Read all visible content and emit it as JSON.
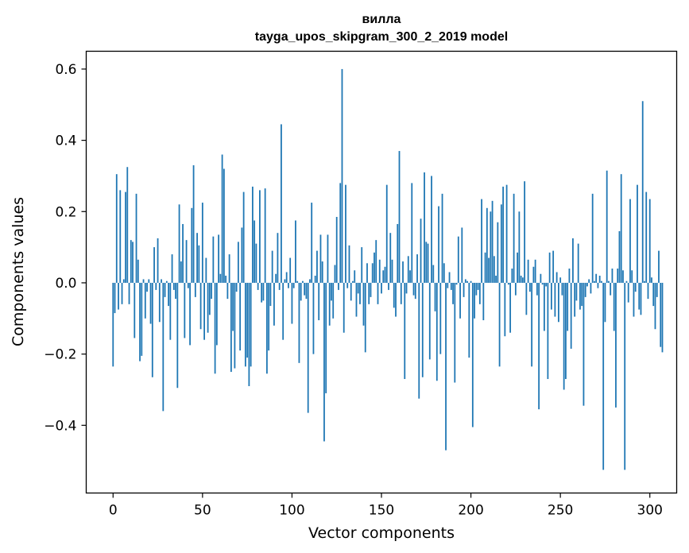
{
  "chart_data": {
    "type": "bar",
    "title": "вилла",
    "subtitle": "tayga_upos_skipgram_300_2_2019 model",
    "xlabel": "Vector components",
    "ylabel": "Components values",
    "xlim": [
      -15,
      315
    ],
    "ylim": [
      -0.59,
      0.65
    ],
    "xticks": [
      0,
      50,
      100,
      150,
      200,
      250,
      300
    ],
    "xtick_labels": [
      "0",
      "50",
      "100",
      "150",
      "200",
      "250",
      "300"
    ],
    "yticks": [
      -0.4,
      -0.2,
      0.0,
      0.2,
      0.4,
      0.6
    ],
    "ytick_labels": [
      "−0.4",
      "−0.2",
      "0.0",
      "0.2",
      "0.4",
      "0.6"
    ],
    "grid": false,
    "color": "#1f77b4",
    "x_start": 0,
    "values": [
      -0.235,
      -0.085,
      0.305,
      -0.075,
      0.26,
      -0.06,
      0.01,
      0.255,
      0.325,
      -0.06,
      0.12,
      0.115,
      -0.155,
      0.25,
      0.065,
      -0.22,
      -0.205,
      0.01,
      -0.1,
      -0.025,
      0.01,
      -0.115,
      -0.265,
      0.1,
      -0.02,
      0.125,
      -0.11,
      0.01,
      -0.36,
      -0.04,
      0.005,
      -0.065,
      -0.16,
      0.08,
      -0.02,
      -0.045,
      -0.295,
      0.22,
      0.06,
      0.165,
      -0.155,
      0.12,
      -0.015,
      -0.175,
      0.21,
      0.33,
      -0.04,
      0.14,
      0.105,
      -0.13,
      0.225,
      -0.16,
      0.07,
      -0.14,
      -0.09,
      -0.045,
      0.13,
      -0.255,
      -0.175,
      0.135,
      0.025,
      0.36,
      0.32,
      0.02,
      -0.045,
      0.08,
      -0.25,
      -0.135,
      -0.24,
      -0.025,
      0.115,
      -0.19,
      0.155,
      0.255,
      -0.235,
      -0.21,
      -0.29,
      -0.235,
      0.27,
      0.175,
      0.11,
      -0.02,
      0.26,
      -0.055,
      -0.05,
      0.265,
      -0.255,
      -0.19,
      -0.065,
      0.09,
      -0.12,
      0.025,
      0.14,
      -0.02,
      0.445,
      -0.16,
      0.01,
      0.03,
      -0.015,
      0.07,
      -0.115,
      -0.015,
      0.175,
      0.005,
      -0.225,
      -0.05,
      0.005,
      -0.035,
      -0.045,
      -0.365,
      0.01,
      0.225,
      -0.2,
      0.02,
      0.09,
      -0.105,
      0.135,
      0.06,
      -0.445,
      -0.31,
      0.135,
      -0.12,
      -0.05,
      -0.1,
      0.05,
      0.185,
      -0.02,
      0.28,
      0.6,
      -0.14,
      0.275,
      -0.015,
      0.105,
      -0.05,
      0.005,
      0.035,
      -0.095,
      -0.03,
      -0.06,
      0.1,
      -0.12,
      -0.195,
      0.055,
      -0.06,
      -0.04,
      0.055,
      0.085,
      0.12,
      -0.06,
      0.065,
      -0.03,
      0.035,
      0.045,
      0.275,
      -0.02,
      0.14,
      0.065,
      -0.07,
      -0.095,
      0.165,
      0.37,
      -0.06,
      0.06,
      -0.27,
      -0.03,
      0.075,
      0.035,
      0.28,
      -0.035,
      -0.045,
      0.08,
      -0.325,
      0.18,
      -0.265,
      0.31,
      0.115,
      0.11,
      -0.215,
      0.3,
      0.05,
      -0.08,
      -0.275,
      0.215,
      -0.2,
      0.25,
      0.055,
      -0.47,
      -0.015,
      0.03,
      -0.02,
      -0.06,
      -0.28,
      -0.005,
      0.13,
      -0.1,
      0.155,
      -0.04,
      0.01,
      0.005,
      -0.21,
      0.005,
      -0.405,
      -0.1,
      -0.035,
      -0.02,
      -0.06,
      0.235,
      -0.105,
      0.085,
      0.21,
      0.07,
      0.2,
      0.23,
      0.075,
      0.02,
      0.17,
      -0.235,
      0.22,
      0.27,
      -0.15,
      0.275,
      -0.005,
      -0.14,
      0.04,
      0.25,
      -0.035,
      0.085,
      0.2,
      0.02,
      0.015,
      0.285,
      -0.09,
      0.065,
      -0.025,
      -0.235,
      0.045,
      0.065,
      -0.035,
      -0.355,
      0.025,
      -0.005,
      -0.135,
      -0.01,
      -0.27,
      0.085,
      -0.075,
      0.09,
      -0.095,
      0.03,
      -0.11,
      0.015,
      -0.035,
      -0.3,
      -0.27,
      -0.135,
      0.04,
      -0.185,
      0.125,
      -0.095,
      -0.05,
      0.11,
      -0.075,
      -0.065,
      -0.345,
      -0.04,
      -0.01,
      0.01,
      -0.03,
      0.25,
      0.005,
      0.025,
      -0.015,
      0.02,
      0.005,
      -0.525,
      -0.11,
      0.315,
      0.005,
      -0.035,
      0.04,
      -0.135,
      -0.35,
      0.04,
      0.145,
      0.305,
      0.035,
      -0.525,
      0.005,
      -0.055,
      0.235,
      0.035,
      -0.095,
      -0.025,
      0.275,
      -0.075,
      -0.09,
      0.51,
      0.005,
      0.255,
      -0.045,
      0.235,
      0.015,
      -0.065,
      -0.13,
      -0.04,
      0.09,
      -0.18,
      -0.195
    ]
  }
}
